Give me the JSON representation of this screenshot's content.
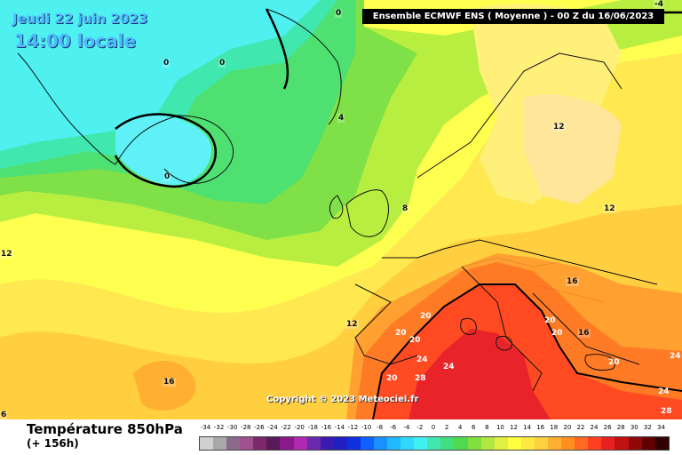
{
  "header": {
    "date": "Jeudi 22 juin 2023",
    "time": "14:00 locale",
    "run_info": "Ensemble ECMWF ENS  ( Moyenne )  -  00 Z du 16/06/2023"
  },
  "map": {
    "copyright": "Copyright © 2023 Meteociel.fr",
    "isotherm_labels": [
      "0",
      "0",
      "0",
      "0",
      "4",
      "8",
      "12",
      "12",
      "12",
      "16",
      "16",
      "12",
      "16",
      "20",
      "20",
      "20",
      "20",
      "20",
      "24",
      "24",
      "20",
      "28",
      "20",
      "24",
      "24",
      "28",
      "-4",
      "6"
    ]
  },
  "legend": {
    "title": "Température 850hPa",
    "subtitle": "(+ 156h)",
    "scale_values": [
      "-34",
      "-32",
      "-30",
      "-28",
      "-26",
      "-24",
      "-22",
      "-20",
      "-18",
      "-16",
      "-14",
      "-12",
      "-10",
      "-8",
      "-6",
      "-4",
      "-2",
      "0",
      "2",
      "4",
      "6",
      "8",
      "10",
      "12",
      "14",
      "16",
      "18",
      "20",
      "22",
      "24",
      "26",
      "28",
      "30",
      "32",
      "34"
    ],
    "scale_colors": [
      "#d0d0d0",
      "#a8a8a8",
      "#8c6a8c",
      "#a0508c",
      "#7a2a6a",
      "#5a1a5a",
      "#8a1a8a",
      "#b02ab0",
      "#6a2ab0",
      "#3a1ab0",
      "#2020c0",
      "#1030e0",
      "#1060ff",
      "#1a90ff",
      "#20b8ff",
      "#30d8ff",
      "#40f0f0",
      "#40e8b0",
      "#40e080",
      "#50d850",
      "#80e040",
      "#b0e840",
      "#e0f040",
      "#ffff40",
      "#ffe840",
      "#ffd040",
      "#ffb030",
      "#ff9020",
      "#ff6a20",
      "#ff4020",
      "#e82020",
      "#c01010",
      "#900808",
      "#600000",
      "#300000"
    ]
  }
}
